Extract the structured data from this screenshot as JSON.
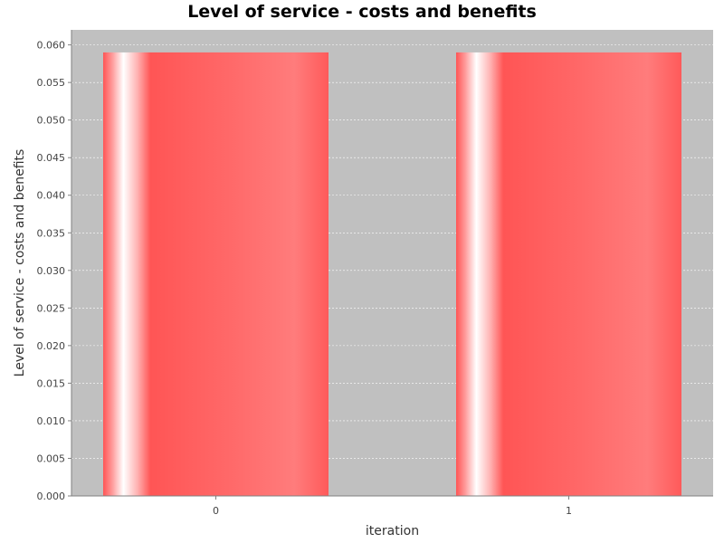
{
  "chart_data": {
    "type": "bar",
    "title": "Level of service -  costs and benefits",
    "xlabel": "iteration",
    "ylabel": "Level of service -  costs and benefits",
    "categories": [
      "0",
      "1"
    ],
    "series": [
      {
        "values": [
          0.059,
          0.059
        ]
      }
    ],
    "ylim": [
      0,
      0.062
    ],
    "yticks": [
      "0.000",
      "0.005",
      "0.010",
      "0.015",
      "0.020",
      "0.025",
      "0.030",
      "0.035",
      "0.040",
      "0.045",
      "0.050",
      "0.055",
      "0.060"
    ],
    "grid": true,
    "legend": "none",
    "colors": {
      "plot_background": "#c0c0c0",
      "bar_base": "#ff5555",
      "bar_highlight": "#ffffff",
      "gridline": "#ffffff"
    }
  }
}
